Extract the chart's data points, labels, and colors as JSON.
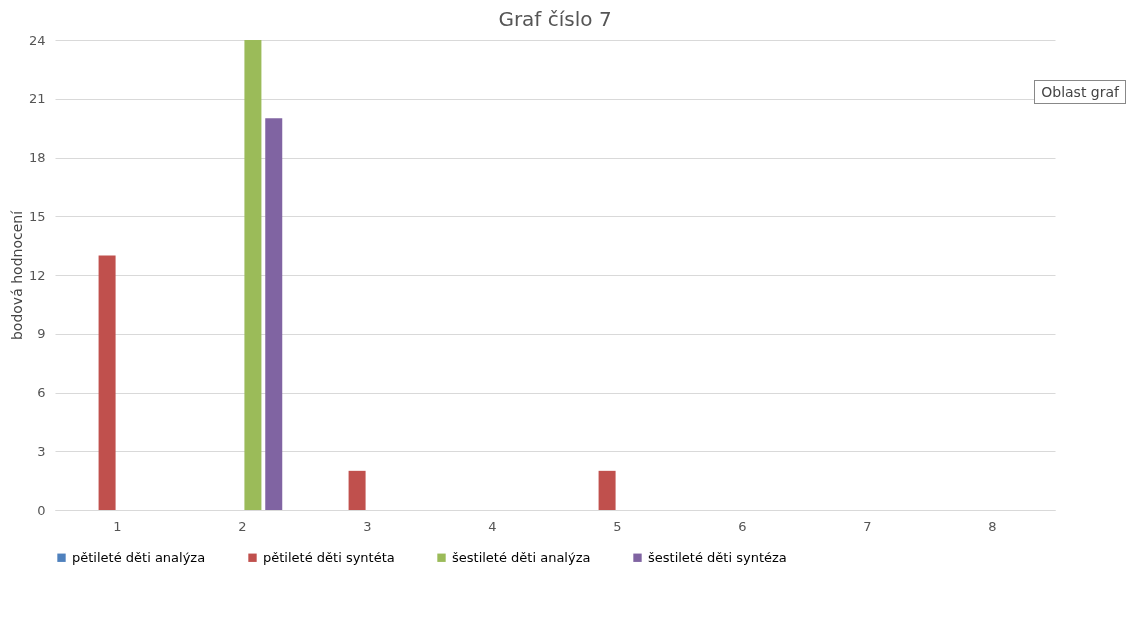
{
  "chart_data": {
    "type": "bar",
    "title": "Graf číslo 7",
    "ylabel": "bodová hodnocení",
    "categories": [
      "1",
      "2",
      "3",
      "4",
      "5",
      "6",
      "7",
      "8"
    ],
    "series": [
      {
        "name": "pětileté děti analýza",
        "color": "#4f81bd",
        "values": [
          0,
          0,
          0,
          0,
          0,
          0,
          0,
          0
        ]
      },
      {
        "name": "pětileté děti syntéta",
        "color": "#c0504d",
        "values": [
          13,
          0,
          2,
          0,
          2,
          0,
          0,
          0
        ]
      },
      {
        "name": "šestileté děti analýza",
        "color": "#9bbb59",
        "values": [
          0,
          24,
          0,
          0,
          0,
          0,
          0,
          0
        ]
      },
      {
        "name": "šestileté děti syntéza",
        "color": "#8064a2",
        "values": [
          0,
          20,
          0,
          0,
          0,
          0,
          0,
          0
        ]
      }
    ],
    "ylim": [
      0,
      24
    ],
    "yticks": [
      0,
      3,
      6,
      9,
      12,
      15,
      18,
      21,
      24
    ],
    "grid": "y",
    "legend": "bottom",
    "annotations": [
      "Oblast graf"
    ]
  }
}
